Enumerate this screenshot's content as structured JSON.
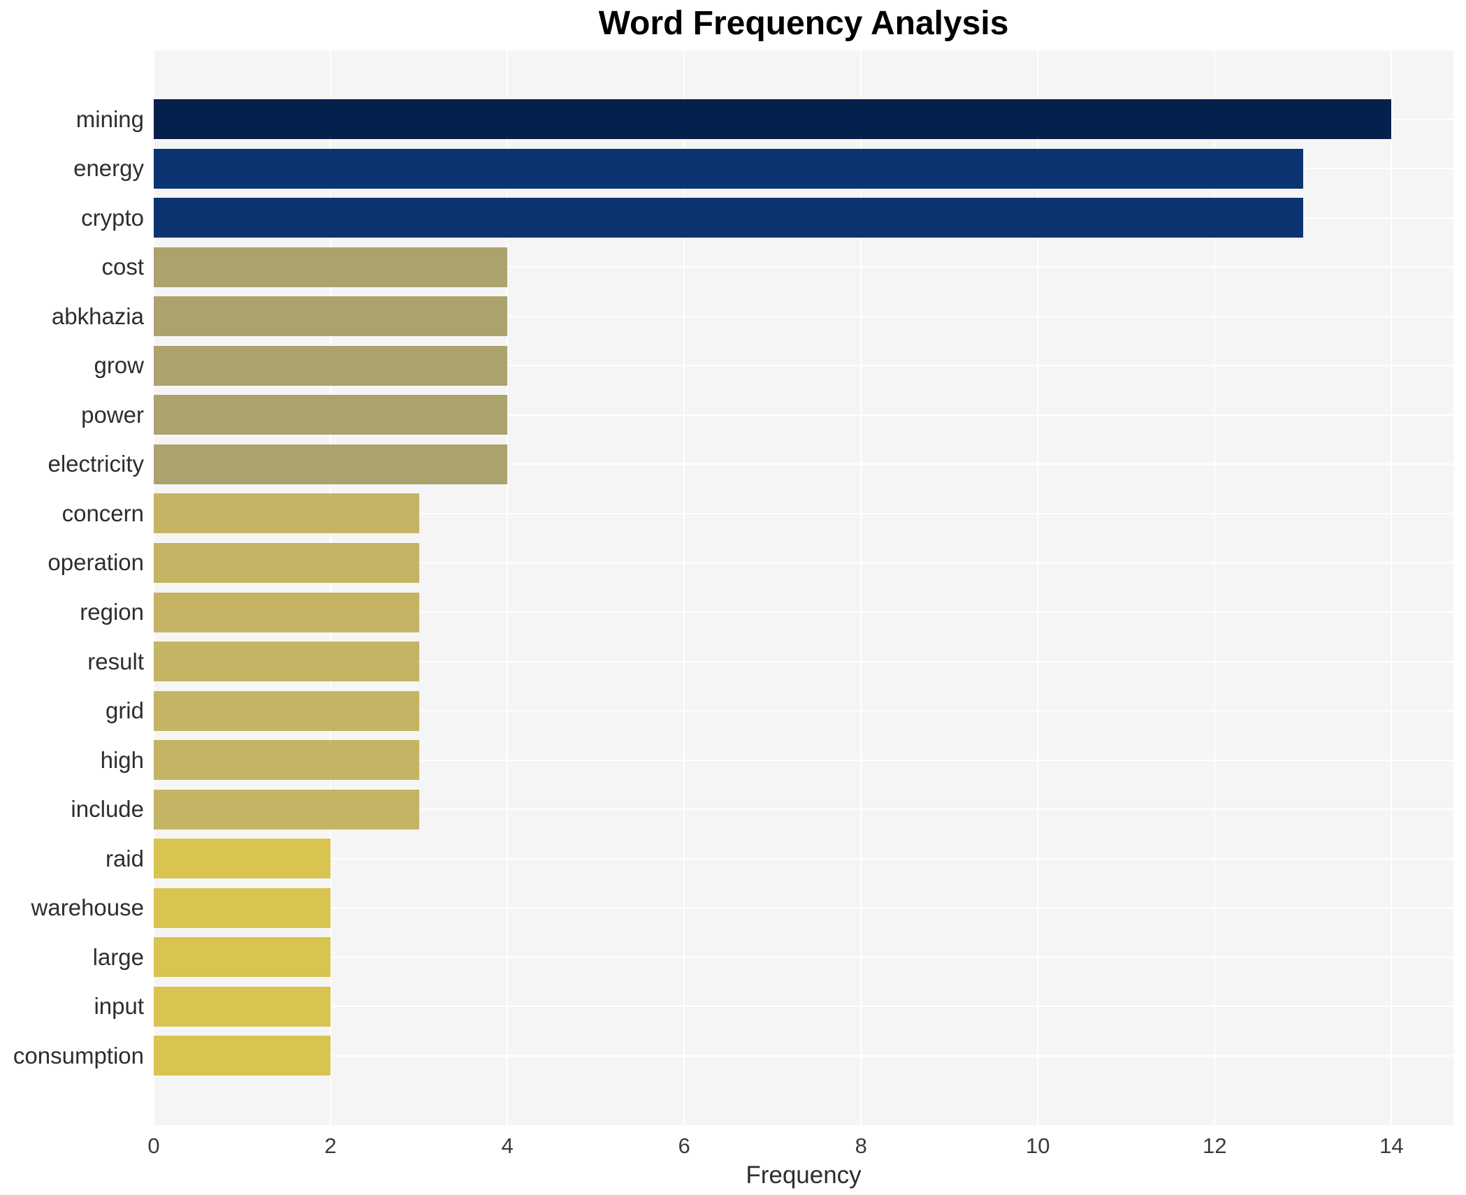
{
  "chart_data": {
    "type": "bar",
    "orientation": "horizontal",
    "title": "Word Frequency Analysis",
    "xlabel": "Frequency",
    "ylabel": "",
    "categories": [
      "mining",
      "energy",
      "crypto",
      "cost",
      "abkhazia",
      "grow",
      "power",
      "electricity",
      "concern",
      "operation",
      "region",
      "result",
      "grid",
      "high",
      "include",
      "raid",
      "warehouse",
      "large",
      "input",
      "consumption"
    ],
    "values": [
      14,
      13,
      13,
      4,
      4,
      4,
      4,
      4,
      3,
      3,
      3,
      3,
      3,
      3,
      3,
      2,
      2,
      2,
      2,
      2
    ],
    "xticks": [
      0,
      2,
      4,
      6,
      8,
      10,
      12,
      14
    ],
    "xlim": [
      0,
      14.7
    ],
    "grid": true,
    "legend": false,
    "colors": {
      "value_14": "#04204c",
      "value_13": "#0b3470",
      "value_4": "#aba26e",
      "value_3": "#c5b464",
      "value_2": "#d9c351",
      "plot_background": "#f5f5f5",
      "gridline": "#ffffff",
      "title_text": "#000000",
      "label_text": "#2e2e2e"
    }
  }
}
